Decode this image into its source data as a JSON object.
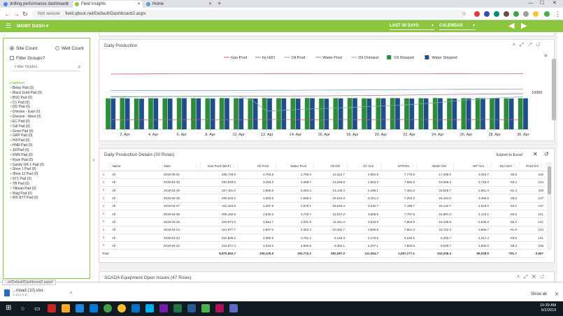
{
  "browser": {
    "tabs": [
      {
        "label": "drilling performance dashboard",
        "color": "#4285f4"
      },
      {
        "label": "Field Insights",
        "color": "#8cc63f"
      },
      {
        "label": "Home",
        "color": "#5b9bd5"
      }
    ],
    "new_tab": "+",
    "security": "Not secure",
    "url": "field.qbsol.net/Default/Dashboard2.aspx"
  },
  "app": {
    "menu_label": "MGMT DASH",
    "date_range": "LAST 30 DAYS",
    "calendar": "CALENDAR",
    "accent": "#8cc63f"
  },
  "sidebar": {
    "site_count": "Site Count",
    "well_count": "Well Count",
    "filter_groups": "Filter Groups?",
    "filter_placeholder": "Filter Nodes",
    "company_label": "COMPANY",
    "nodes": [
      "Betsy Pad (0)",
      "Black Gold Pad (0)",
      "BSC Pad (0)",
      "C1 Pad (0)",
      "DD Pad (0)",
      "Division - East (0)",
      "Division - West (0)",
      "EC Pad (0)",
      "Gill Pad (0)",
      "Grow Pad (0)",
      "GRP Pad (0)",
      "Hill Pad (0)",
      "HNR Pad (0)",
      "Jill Pad (0)",
      "KMR Pad (0)",
      "Ryze Pad (0)",
      "Sandy GR 1 Pad (0)",
      "Shoe 1 Pad (0)",
      "Shoe 12 Pad (0)",
      "ST1 Pad (0)",
      "TB Pad (0)",
      "Tillman Pad (0)",
      "Wag Pad (0)",
      "WS BTT Pad (0)"
    ]
  },
  "daily_production": {
    "title": "Daily Production",
    "legend": [
      {
        "name": "Gas Prod",
        "color": "#e0566c",
        "kind": "line"
      },
      {
        "name": "Inj H2O",
        "color": "#a07070",
        "kind": "line"
      },
      {
        "name": "Oil Prod",
        "color": "#70b0a0",
        "kind": "line"
      },
      {
        "name": "Water Prod",
        "color": "#9a7a9a",
        "kind": "line"
      },
      {
        "name": "Oil OnHand",
        "color": "#80a0c0",
        "kind": "line"
      },
      {
        "name": "Oil Shipped",
        "color": "#2e8b3a",
        "kind": "bar"
      },
      {
        "name": "Water Shipped",
        "color": "#1f4e8c",
        "kind": "bar"
      }
    ],
    "y_label": "10000",
    "x_ticks": [
      "2. Apr",
      "4. Apr",
      "6. Apr",
      "8. Apr",
      "10. Apr",
      "12. Apr",
      "14. Apr",
      "16. Apr",
      "18. Apr",
      "20. Apr",
      "22. Apr",
      "24. Apr",
      "26. Apr",
      "28. Apr",
      "30. Apr"
    ]
  },
  "chart_data": {
    "type": "bar",
    "x": [
      "1. Apr",
      "2. Apr",
      "3. Apr",
      "4. Apr",
      "5. Apr",
      "6. Apr",
      "7. Apr",
      "8. Apr",
      "9. Apr",
      "10. Apr",
      "11. Apr",
      "12. Apr",
      "13. Apr",
      "14. Apr",
      "15. Apr",
      "16. Apr",
      "17. Apr",
      "18. Apr",
      "19. Apr",
      "20. Apr",
      "21. Apr",
      "22. Apr",
      "23. Apr",
      "24. Apr",
      "25. Apr",
      "26. Apr",
      "27. Apr",
      "28. Apr",
      "29. Apr",
      "30. Apr"
    ],
    "y_scale": "log",
    "y_tick": 10000,
    "series": [
      {
        "name": "Oil Shipped",
        "values": [
          3300,
          3500,
          3200,
          3400,
          3300,
          3500,
          3400,
          3300,
          3500,
          3400,
          3300,
          3500,
          3400,
          3300,
          3500,
          3200,
          3400,
          3500,
          3300,
          3400,
          3500,
          3300,
          3400,
          3500,
          3300,
          3400,
          3500,
          3400,
          3300,
          3400
        ]
      },
      {
        "name": "Water Shipped",
        "values": [
          3200,
          3300,
          3100,
          3300,
          3200,
          3400,
          3300,
          3200,
          3400,
          3300,
          3200,
          3300,
          3300,
          3200,
          3400,
          3100,
          3300,
          3400,
          3200,
          3300,
          3400,
          3200,
          3300,
          3400,
          3200,
          3300,
          3400,
          3300,
          3200,
          3300
        ]
      },
      {
        "name": "Gas Prod",
        "values": [
          310000,
          315000,
          318000,
          320000,
          322000,
          325000,
          327000,
          330000,
          331000,
          333000,
          335000,
          337000,
          336000,
          338000,
          336000,
          334000,
          333000,
          332000,
          331000,
          330000,
          332000,
          334000,
          335000,
          336000,
          337000,
          336000,
          335000,
          334000,
          333000,
          336000
        ]
      },
      {
        "name": "Water Prod",
        "values": [
          4600,
          4700,
          4650,
          4700,
          4750,
          4800,
          4850,
          4900,
          4950,
          5000,
          4900,
          4950,
          5000,
          5100,
          5200,
          5300,
          5400,
          5500,
          5600,
          5800,
          6000,
          6200,
          6400,
          6600,
          6800,
          7000,
          7200,
          7500,
          7600,
          7700
        ]
      },
      {
        "name": "Oil OnHand",
        "values": [
          13800,
          13900,
          14000,
          14000,
          14100,
          14200,
          14300,
          14400,
          14500,
          14600,
          14700,
          14800,
          14900,
          15000,
          15200,
          15400,
          15600,
          15800,
          16000,
          16300,
          16600,
          16900,
          17200,
          17500,
          17700,
          17900,
          18100,
          18300,
          18400,
          18500
        ]
      },
      {
        "name": "Oil Prod",
        "values": [
          4200,
          4300,
          4400,
          4500,
          4600,
          4700,
          4800,
          4850,
          4900,
          4950,
          2100,
          300,
          350,
          400,
          450,
          500,
          550,
          600,
          700,
          800,
          900,
          1000,
          1200,
          1500,
          1900,
          2400,
          2900,
          3400,
          3900,
          4400
        ]
      },
      {
        "name": "Inj H2O",
        "values": [
          60,
          61,
          60,
          62,
          61,
          62,
          63,
          62,
          61,
          62,
          63,
          62,
          63,
          62,
          61,
          62,
          63,
          62,
          61,
          62,
          63,
          62,
          63,
          62,
          61,
          62,
          63,
          62,
          61,
          62
        ]
      }
    ]
  },
  "details": {
    "title": "Daily Production Details (30 Rows)",
    "export_label": "Export to Excel",
    "columns": [
      "Name",
      "Date",
      "Gas Prod (MCF)",
      "Oil Prod",
      "Water Prod",
      "Oil OH",
      "OT Amt",
      "MTROIL",
      "Water OH",
      "WT Amt",
      "INJ H2O",
      "Prod Cnt"
    ],
    "rows": [
      [
        "All",
        "2019-05-01",
        "336,729.9",
        "4,793.5",
        "2,755.3",
        "12,312.7",
        "4,951.9",
        "7,775.6",
        "17,288.5",
        "3,054.7",
        "65.5",
        "146"
      ],
      [
        "All",
        "2019-04-30",
        "330,928.5",
        "3,293.2",
        "3,468.7",
        "13,258.8",
        "2,663.2",
        "7,666.9",
        "19,066.2",
        "3,715.0",
        "-63.4",
        "144"
      ],
      [
        "All",
        "2019-04-29",
        "327,451.0",
        "2,886.5",
        "5,284.4",
        "14,125.3",
        "2,496.1",
        "7,481.6",
        "18,518.7",
        "2,951.4",
        "-51.4",
        "159"
      ],
      [
        "All",
        "2019-04-28",
        "290,623.2",
        "3,593.5",
        "2,659.1",
        "18,044.3",
        "3,401.2",
        "7,263.3",
        "24,154.0",
        "3,466.6",
        "-45.5",
        "137"
      ],
      [
        "All",
        "2019-04-27",
        "311,263.8",
        "3,287.8",
        "2,579.1",
        "18,620.4",
        "3,232.7",
        "7,198.7",
        "24,132.7",
        "2,523.0",
        "-60.2",
        "137"
      ],
      [
        "All",
        "2019-04-26",
        "305,156.9",
        "3,535.5",
        "3,719.7",
        "12,047.2",
        "3,605.8",
        "7,797.5",
        "15,887.2",
        "4,123.1",
        "-60.6",
        "141"
      ],
      [
        "All",
        "2019-04-25",
        "320,873.0",
        "3,654.7",
        "3,201.9",
        "11,491.3",
        "3,533.9",
        "7,803.9",
        "15,435.5",
        "3,539.0",
        "-55.2",
        "141"
      ],
      [
        "All",
        "2019-04-24",
        "321,977.7",
        "2,987.5",
        "4,303.4",
        "10,262.7",
        "3,660.9",
        "7,651.3",
        "15,722.3",
        "3,556.7",
        "-61.8",
        "134"
      ],
      [
        "All",
        "2019-04-23",
        "322,509.2",
        "4,090.6",
        "3,751.2",
        "9,149.3",
        "4,173.5",
        "8,225.5",
        "9,405.7",
        "4,317.4",
        "-63.5",
        "141"
      ],
      [
        "All",
        "2019-04-22",
        "316,877.4",
        "4,016.5",
        "4,980.8",
        "9,352.1",
        "4,207.1",
        "7,560.8",
        "9,049.7",
        "4,860.0",
        "-58.3",
        "156"
      ]
    ],
    "totals_label": "Total",
    "totals": [
      "",
      "",
      "8,970,553.7",
      "105,125.9",
      "100,772.2",
      "282,287.0",
      "111,354.7",
      "1,057,177.1",
      "310,206.4",
      "99,028.9",
      "-791.7",
      "3,967"
    ]
  },
  "scada": {
    "title": "SCADA Equipment Open Issues (47 Rows)"
  },
  "download": {
    "status_url": "...et/Default/Dashboard2.aspx#",
    "file": "...nload (10).xlsx",
    "size": "1.4/14.3 B",
    "show_all": "Show all"
  },
  "taskbar": {
    "time": "10:39 AM",
    "date": "5/2/2019"
  }
}
